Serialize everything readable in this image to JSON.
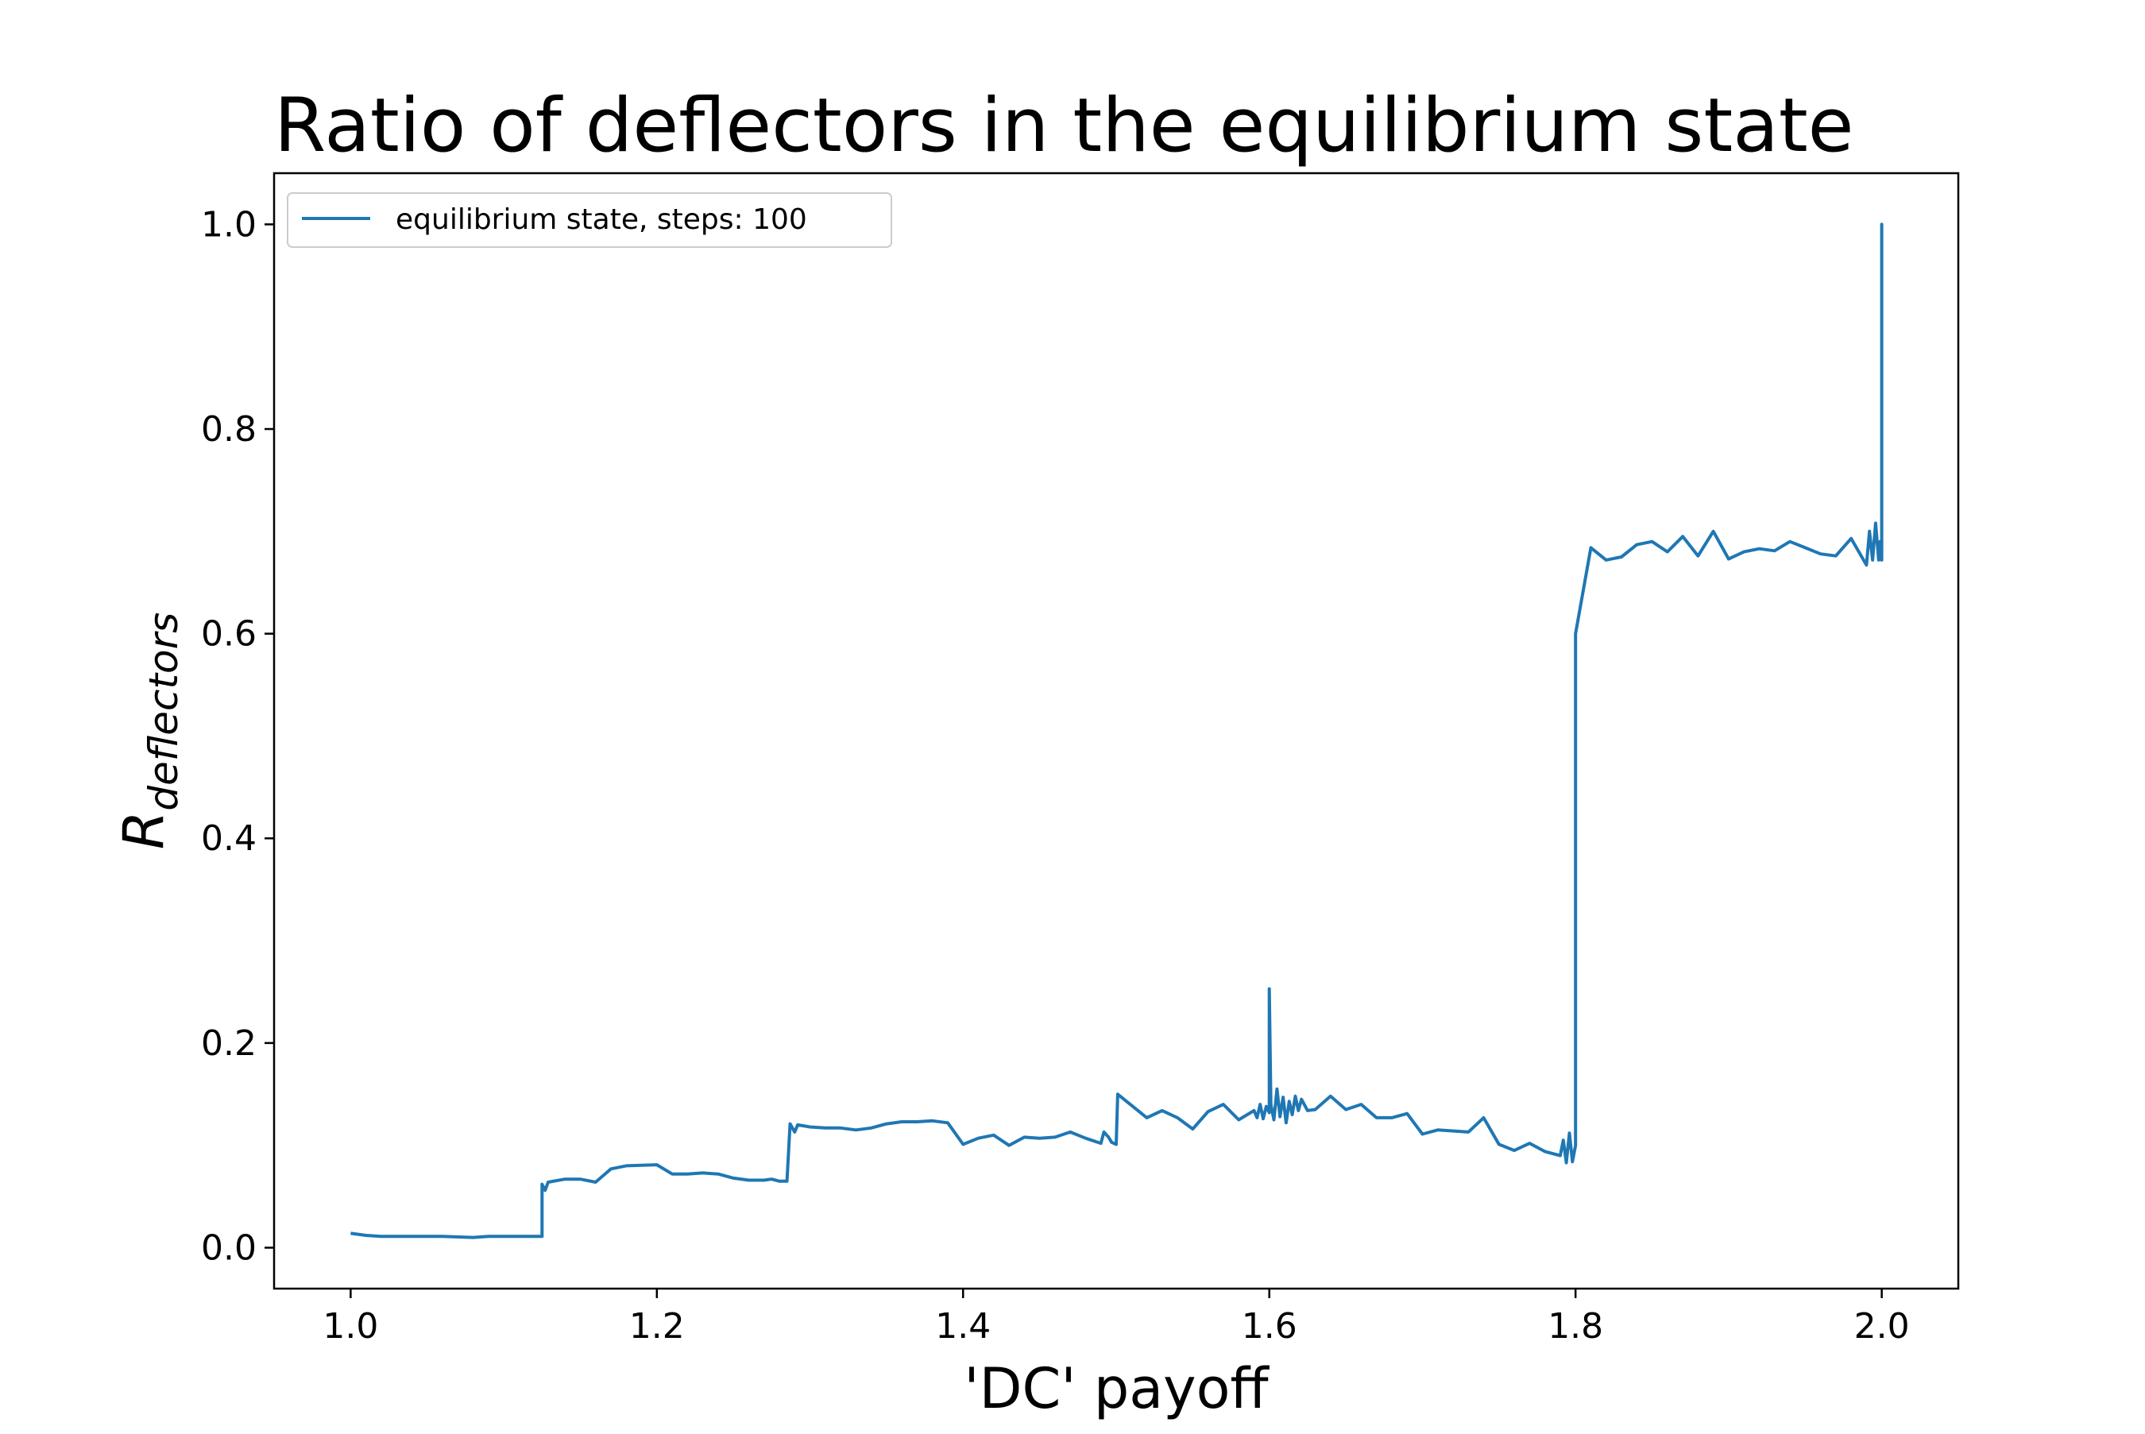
{
  "chart_data": {
    "type": "line",
    "title": "Ratio of deflectors in the equilibrium state",
    "xlabel": "'DC' payoff",
    "ylabel": {
      "base": "R",
      "subscript": "deflectors"
    },
    "xlim": [
      0.95,
      2.05
    ],
    "ylim": [
      -0.04,
      1.05
    ],
    "xticks": [
      1.0,
      1.2,
      1.4,
      1.6,
      1.8,
      2.0
    ],
    "xtick_labels": [
      "1.0",
      "1.2",
      "1.4",
      "1.6",
      "1.8",
      "2.0"
    ],
    "yticks": [
      0.0,
      0.2,
      0.4,
      0.6,
      0.8,
      1.0
    ],
    "ytick_labels": [
      "0.0",
      "0.2",
      "0.4",
      "0.6",
      "0.8",
      "1.0"
    ],
    "grid": false,
    "legend_position": "top-left",
    "series": [
      {
        "name": "equilibrium state, steps: 100",
        "color": "#1f77b4",
        "points": [
          [
            1.0,
            0.014
          ],
          [
            1.01,
            0.012
          ],
          [
            1.02,
            0.011
          ],
          [
            1.04,
            0.011
          ],
          [
            1.06,
            0.011
          ],
          [
            1.08,
            0.01
          ],
          [
            1.09,
            0.011
          ],
          [
            1.1,
            0.011
          ],
          [
            1.11,
            0.011
          ],
          [
            1.115,
            0.011
          ],
          [
            1.125,
            0.011
          ],
          [
            1.125,
            0.062
          ],
          [
            1.127,
            0.056
          ],
          [
            1.129,
            0.064
          ],
          [
            1.14,
            0.067
          ],
          [
            1.15,
            0.067
          ],
          [
            1.16,
            0.064
          ],
          [
            1.17,
            0.077
          ],
          [
            1.18,
            0.08
          ],
          [
            1.2,
            0.081
          ],
          [
            1.21,
            0.072
          ],
          [
            1.22,
            0.072
          ],
          [
            1.23,
            0.073
          ],
          [
            1.24,
            0.072
          ],
          [
            1.25,
            0.068
          ],
          [
            1.26,
            0.066
          ],
          [
            1.27,
            0.066
          ],
          [
            1.275,
            0.067
          ],
          [
            1.28,
            0.065
          ],
          [
            1.285,
            0.065
          ],
          [
            1.287,
            0.121
          ],
          [
            1.29,
            0.113
          ],
          [
            1.292,
            0.12
          ],
          [
            1.3,
            0.118
          ],
          [
            1.31,
            0.117
          ],
          [
            1.32,
            0.117
          ],
          [
            1.33,
            0.115
          ],
          [
            1.34,
            0.117
          ],
          [
            1.35,
            0.121
          ],
          [
            1.36,
            0.123
          ],
          [
            1.37,
            0.123
          ],
          [
            1.38,
            0.124
          ],
          [
            1.39,
            0.122
          ],
          [
            1.4,
            0.101
          ],
          [
            1.41,
            0.107
          ],
          [
            1.42,
            0.11
          ],
          [
            1.43,
            0.1
          ],
          [
            1.44,
            0.108
          ],
          [
            1.45,
            0.107
          ],
          [
            1.46,
            0.108
          ],
          [
            1.47,
            0.113
          ],
          [
            1.48,
            0.107
          ],
          [
            1.49,
            0.102
          ],
          [
            1.492,
            0.113
          ],
          [
            1.495,
            0.108
          ],
          [
            1.497,
            0.103
          ],
          [
            1.5,
            0.101
          ],
          [
            1.501,
            0.15
          ],
          [
            1.52,
            0.127
          ],
          [
            1.53,
            0.134
          ],
          [
            1.54,
            0.127
          ],
          [
            1.55,
            0.116
          ],
          [
            1.56,
            0.133
          ],
          [
            1.57,
            0.14
          ],
          [
            1.58,
            0.125
          ],
          [
            1.59,
            0.134
          ],
          [
            1.592,
            0.127
          ],
          [
            1.594,
            0.14
          ],
          [
            1.596,
            0.126
          ],
          [
            1.598,
            0.138
          ],
          [
            1.6,
            0.132
          ],
          [
            1.6,
            0.253
          ],
          [
            1.601,
            0.14
          ],
          [
            1.603,
            0.125
          ],
          [
            1.605,
            0.155
          ],
          [
            1.607,
            0.128
          ],
          [
            1.609,
            0.147
          ],
          [
            1.611,
            0.122
          ],
          [
            1.613,
            0.143
          ],
          [
            1.615,
            0.13
          ],
          [
            1.617,
            0.148
          ],
          [
            1.619,
            0.134
          ],
          [
            1.621,
            0.145
          ],
          [
            1.625,
            0.134
          ],
          [
            1.63,
            0.135
          ],
          [
            1.64,
            0.148
          ],
          [
            1.65,
            0.135
          ],
          [
            1.66,
            0.14
          ],
          [
            1.67,
            0.127
          ],
          [
            1.68,
            0.127
          ],
          [
            1.69,
            0.131
          ],
          [
            1.7,
            0.111
          ],
          [
            1.71,
            0.115
          ],
          [
            1.73,
            0.113
          ],
          [
            1.74,
            0.127
          ],
          [
            1.75,
            0.101
          ],
          [
            1.76,
            0.095
          ],
          [
            1.77,
            0.102
          ],
          [
            1.78,
            0.094
          ],
          [
            1.79,
            0.09
          ],
          [
            1.792,
            0.105
          ],
          [
            1.794,
            0.083
          ],
          [
            1.796,
            0.112
          ],
          [
            1.798,
            0.084
          ],
          [
            1.8,
            0.1
          ],
          [
            1.8,
            0.6
          ],
          [
            1.81,
            0.684
          ],
          [
            1.82,
            0.672
          ],
          [
            1.83,
            0.675
          ],
          [
            1.84,
            0.687
          ],
          [
            1.85,
            0.69
          ],
          [
            1.86,
            0.68
          ],
          [
            1.87,
            0.695
          ],
          [
            1.88,
            0.676
          ],
          [
            1.89,
            0.7
          ],
          [
            1.9,
            0.673
          ],
          [
            1.91,
            0.68
          ],
          [
            1.92,
            0.683
          ],
          [
            1.93,
            0.681
          ],
          [
            1.94,
            0.69
          ],
          [
            1.95,
            0.684
          ],
          [
            1.96,
            0.678
          ],
          [
            1.97,
            0.676
          ],
          [
            1.98,
            0.693
          ],
          [
            1.99,
            0.667
          ],
          [
            1.992,
            0.7
          ],
          [
            1.994,
            0.672
          ],
          [
            1.996,
            0.708
          ],
          [
            1.998,
            0.672
          ],
          [
            1.999,
            0.69
          ],
          [
            2.0,
            0.672
          ],
          [
            2.0,
            1.0
          ],
          [
            2.0,
            0.676
          ]
        ]
      }
    ]
  }
}
